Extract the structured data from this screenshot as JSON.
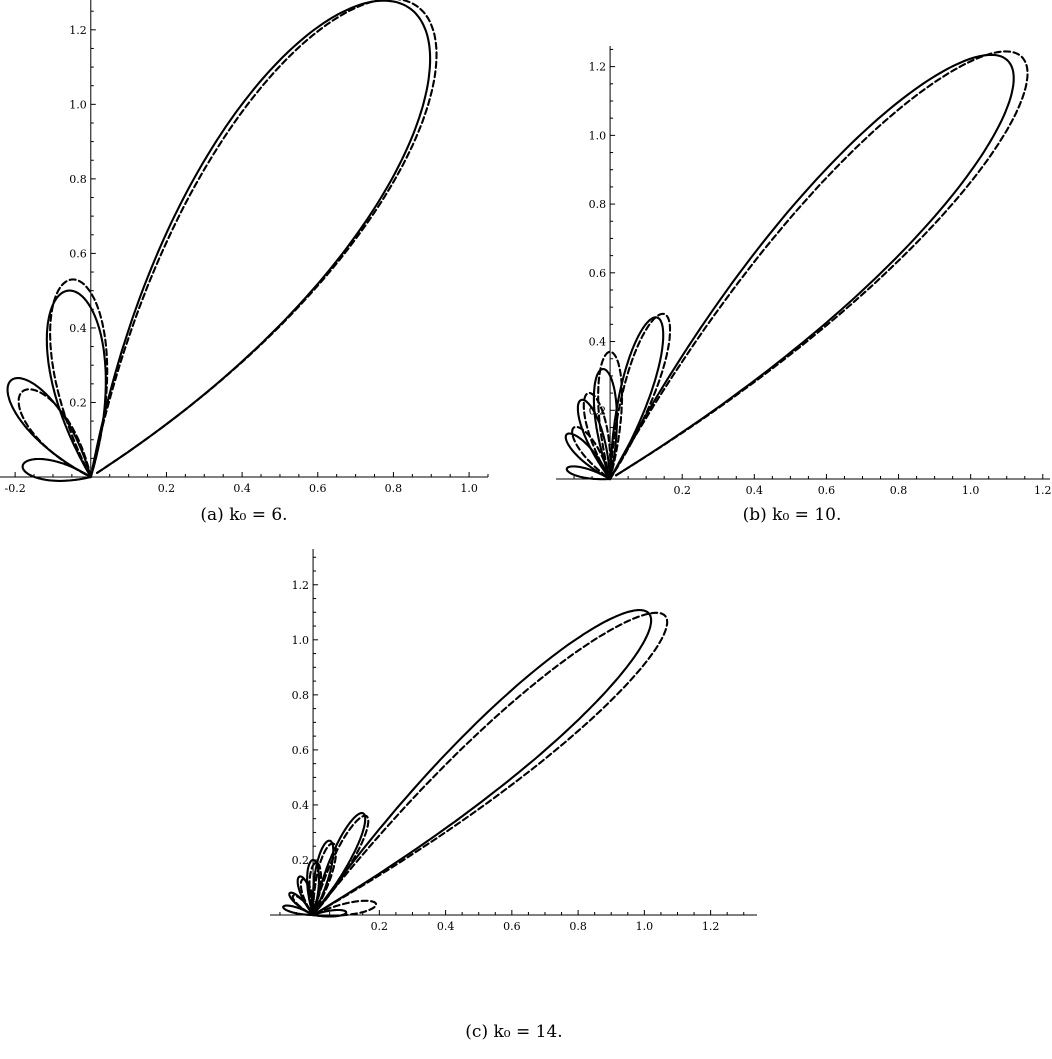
{
  "figure": {
    "panels": [
      {
        "caption": "(a) k₀ = 6.",
        "x_ticks": [
          "-0.2",
          "0.2",
          "0.4",
          "0.6",
          "0.8",
          "1.0"
        ],
        "y_ticks": [
          "0.2",
          "0.4",
          "0.6",
          "0.8",
          "1.0",
          "1.2"
        ]
      },
      {
        "caption": "(b) k₀ = 10.",
        "x_ticks": [
          "0.2",
          "0.4",
          "0.6",
          "0.8",
          "1.0",
          "1.2"
        ],
        "y_ticks": [
          "0.2",
          "0.4",
          "0.6",
          "0.8",
          "1.0",
          "1.2"
        ]
      },
      {
        "caption": "(c) k₀ = 14.",
        "x_ticks": [
          "0.2",
          "0.4",
          "0.6",
          "0.8",
          "1.0",
          "1.2"
        ],
        "y_ticks": [
          "0.2",
          "0.4",
          "0.6",
          "0.8",
          "1.0",
          "1.2"
        ]
      }
    ]
  },
  "chart_data": [
    {
      "type": "line",
      "title": "",
      "caption": "(a) k₀ = 6.",
      "xlim": [
        -0.24,
        1.05
      ],
      "ylim": [
        0,
        1.28
      ],
      "x_ticks": [
        -0.2,
        0.2,
        0.4,
        0.6,
        0.8,
        1.0
      ],
      "y_ticks": [
        0.2,
        0.4,
        0.6,
        0.8,
        1.0,
        1.2
      ],
      "series": [
        {
          "style": "solid",
          "lobes": [
            {
              "dir": [
                0.84,
                1.26
              ],
              "width": 0.4,
              "tip_gap": 0.02
            },
            {
              "dir": [
                -0.06,
                0.5
              ],
              "width": 0.4
            },
            {
              "dir": [
                -0.21,
                0.26
              ],
              "width": 0.4
            },
            {
              "dir": [
                -0.18,
                0.03
              ],
              "width": 0.4
            }
          ]
        },
        {
          "style": "dashed",
          "lobes": [
            {
              "dir": [
                0.86,
                1.265
              ],
              "width": 0.39,
              "tip_gap": 0.02
            },
            {
              "dir": [
                -0.05,
                0.53
              ],
              "width": 0.37
            },
            {
              "dir": [
                -0.18,
                0.23
              ],
              "width": 0.44
            }
          ]
        }
      ]
    },
    {
      "type": "line",
      "title": "",
      "caption": "(b) k₀ = 10.",
      "xlim": [
        -0.15,
        1.22
      ],
      "ylim": [
        0,
        1.26
      ],
      "x_ticks": [
        0.2,
        0.4,
        0.6,
        0.8,
        1.0,
        1.2
      ],
      "y_ticks": [
        0.2,
        0.4,
        0.6,
        0.8,
        1.0,
        1.2
      ],
      "series": [
        {
          "style": "solid",
          "lobes": [
            {
              "dir": [
                1.1,
                1.22
              ],
              "width": 0.26,
              "tip_gap": 0.02
            },
            {
              "dir": [
                0.13,
                0.47
              ],
              "width": 0.24
            },
            {
              "dir": [
                -0.02,
                0.32
              ],
              "width": 0.26
            },
            {
              "dir": [
                -0.08,
                0.23
              ],
              "width": 0.28
            },
            {
              "dir": [
                -0.12,
                0.13
              ],
              "width": 0.32
            },
            {
              "dir": [
                -0.12,
                0.03
              ],
              "width": 0.3
            }
          ]
        },
        {
          "style": "dashed",
          "lobes": [
            {
              "dir": [
                1.14,
                1.23
              ],
              "width": 0.25,
              "tip_gap": 0.02
            },
            {
              "dir": [
                0.15,
                0.48
              ],
              "width": 0.24
            },
            {
              "dir": [
                0.0,
                0.37
              ],
              "width": 0.24
            },
            {
              "dir": [
                -0.06,
                0.25
              ],
              "width": 0.28
            },
            {
              "dir": [
                -0.1,
                0.15
              ],
              "width": 0.34
            }
          ]
        }
      ]
    },
    {
      "type": "line",
      "title": "",
      "caption": "(c) k₀ = 14.",
      "xlim": [
        -0.13,
        1.34
      ],
      "ylim": [
        0,
        1.33
      ],
      "x_ticks": [
        0.2,
        0.4,
        0.6,
        0.8,
        1.0,
        1.2
      ],
      "y_ticks": [
        0.2,
        0.4,
        0.6,
        0.8,
        1.0,
        1.2
      ],
      "series": [
        {
          "style": "solid",
          "lobes": [
            {
              "dir": [
                1.01,
                1.1
              ],
              "width": 0.2,
              "tip_gap": 0.02
            },
            {
              "dir": [
                0.15,
                0.37
              ],
              "width": 0.2
            },
            {
              "dir": [
                0.05,
                0.27
              ],
              "width": 0.22
            },
            {
              "dir": [
                0.0,
                0.2
              ],
              "width": 0.24
            },
            {
              "dir": [
                -0.04,
                0.14
              ],
              "width": 0.28
            },
            {
              "dir": [
                -0.07,
                0.08
              ],
              "width": 0.3
            },
            {
              "dir": [
                -0.09,
                0.03
              ],
              "width": 0.3
            },
            {
              "dir": [
                0.1,
                0.01
              ],
              "width": 0.3
            }
          ]
        },
        {
          "style": "dashed",
          "lobes": [
            {
              "dir": [
                1.06,
                1.09
              ],
              "width": 0.19,
              "tip_gap": 0.02
            },
            {
              "dir": [
                0.16,
                0.36
              ],
              "width": 0.2
            },
            {
              "dir": [
                0.06,
                0.26
              ],
              "width": 0.22
            },
            {
              "dir": [
                0.01,
                0.19
              ],
              "width": 0.24
            },
            {
              "dir": [
                -0.03,
                0.13
              ],
              "width": 0.28
            },
            {
              "dir": [
                -0.06,
                0.07
              ],
              "width": 0.3
            },
            {
              "dir": [
                0.19,
                0.04
              ],
              "width": 0.3
            }
          ]
        }
      ]
    }
  ]
}
